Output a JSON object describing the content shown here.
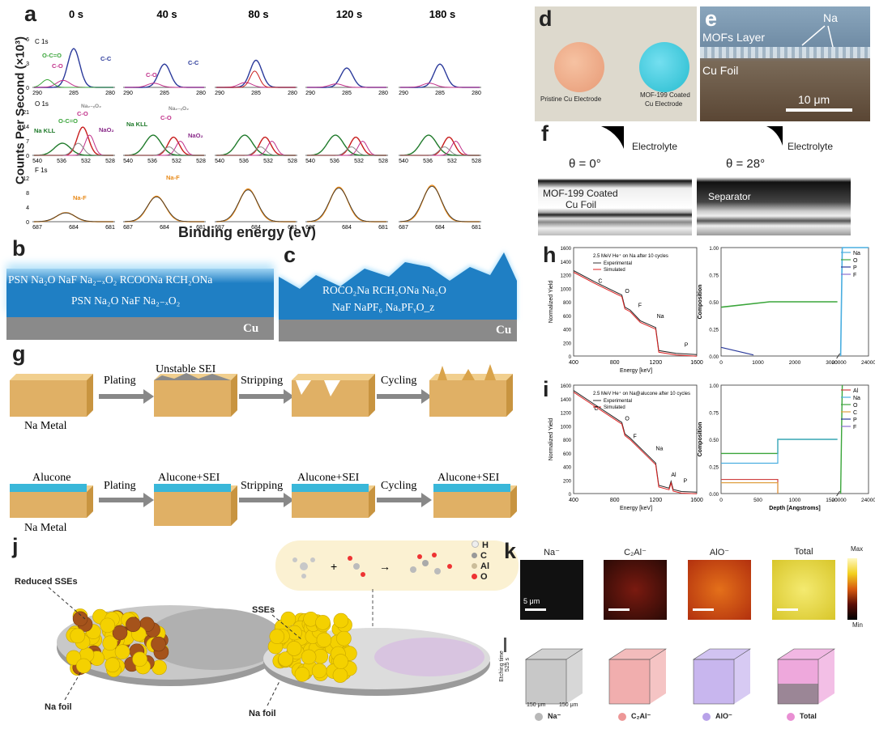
{
  "panel_letters": {
    "a": "a",
    "b": "b",
    "c": "c",
    "d": "d",
    "e": "e",
    "f": "f",
    "g": "g",
    "h": "h",
    "i": "i",
    "j": "j",
    "k": "k"
  },
  "panel_a": {
    "times": [
      "0 s",
      "40 s",
      "80 s",
      "120 s",
      "180 s"
    ],
    "ylabel": "Counts Per Second (×10³)",
    "xlabel": "Binding energy (eV)",
    "row_labels": [
      "C 1s",
      "O 1s",
      "F 1s"
    ],
    "c_ticks": [
      "290",
      "285",
      "280"
    ],
    "o_ticks": [
      "540",
      "536",
      "532",
      "528"
    ],
    "f_ticks": [
      "687",
      "684",
      "681"
    ],
    "c_yticks": [
      "6",
      "3",
      "0"
    ],
    "o_yticks": [
      "21",
      "14",
      "7",
      "0"
    ],
    "f_yticks": [
      "12",
      "8",
      "4",
      "0"
    ],
    "c_peaks": {
      "cc": "C-C",
      "co": "C-O",
      "oco": "O-C=O"
    },
    "o_peaks": {
      "nakll": "Na KLL",
      "oco": "O-C=O",
      "co": "C-O",
      "na2o2": "Na₂₋ₓO₂",
      "nao2": "NaO₂"
    },
    "f_peaks": {
      "naf": "Na-F"
    }
  },
  "panel_b": {
    "line1": "PSN  Na₂O  NaF  Na₂₋ₓO₂  RCOONa  RCH₂ONa",
    "line2": "PSN  Na₂O  NaF  Na₂₋ₓO₂",
    "substrate": "Cu"
  },
  "panel_c": {
    "line1": "ROCO₂Na  RCH₂ONa  Na₂O",
    "line2": "NaF  NaPF₆  NaₓPFᵧO_z",
    "substrate": "Cu"
  },
  "panel_d": {
    "left": "Pristine Cu Electrode",
    "right_1": "MOF-199 Coated",
    "right_2": "Cu Electrode"
  },
  "panel_e": {
    "na": "Na",
    "layer": "MOFs Layer",
    "foil": "Cu Foil",
    "scale": "10 μm"
  },
  "panel_f": {
    "electrolyte": "Electrolyte",
    "angle1": "θ = 0°",
    "angle2": "θ = 28°",
    "coated_1": "MOF-199 Coated",
    "coated_2": "Cu Foil",
    "separator": "Separator"
  },
  "panel_g": {
    "unstable": "Unstable SEI",
    "plating": "Plating",
    "stripping": "Stripping",
    "cycling": "Cycling",
    "na_metal": "Na Metal",
    "alucone": "Alucone",
    "alucone_sei": "Alucone+SEI"
  },
  "panel_h": {
    "note": "2.5 MeV He⁺ on Na after 10 cycles",
    "legend": [
      "Experimental",
      "Simulated"
    ],
    "ylabel": "Normalized Yield",
    "xlabel": "Energy [keV]",
    "peaks": [
      "C",
      "O",
      "F",
      "Na",
      "P"
    ],
    "xticks": [
      "400",
      "800",
      "1200",
      "1600"
    ],
    "yticks": [
      "0",
      "200",
      "400",
      "600",
      "800",
      "1000",
      "1200",
      "1400",
      "1600"
    ],
    "comp_ylabel": "Composition",
    "comp_legend": [
      "Na",
      "O",
      "P",
      "F"
    ],
    "comp_xticks": [
      "0",
      "1000",
      "2000",
      "3000",
      "20000",
      "24000"
    ],
    "comp_yticks": [
      "0.00",
      "0.25",
      "0.50",
      "0.75",
      "1.00"
    ]
  },
  "panel_i": {
    "note": "2.5 MeV He⁺ on Na@alucone after 10 cycles",
    "legend": [
      "Experimental",
      "Simulated"
    ],
    "ylabel": "Normalized Yield",
    "xlabel": "Energy [keV]",
    "peaks": [
      "C",
      "O",
      "F",
      "Na",
      "Al",
      "P"
    ],
    "xticks": [
      "400",
      "800",
      "1200",
      "1600"
    ],
    "yticks": [
      "0",
      "200",
      "400",
      "600",
      "800",
      "1000",
      "1200",
      "1400",
      "1600"
    ],
    "comp_ylabel": "Composition",
    "comp_xlabel": "Depth [Angstroms]",
    "comp_legend": [
      "Al",
      "Na",
      "O",
      "C",
      "P",
      "F"
    ],
    "comp_xticks": [
      "0",
      "500",
      "1000",
      "1500",
      "20000",
      "24000"
    ],
    "comp_yticks": [
      "0.00",
      "0.25",
      "0.50",
      "0.75",
      "1.00"
    ]
  },
  "panel_j": {
    "reduced": "Reduced SSEs",
    "sses": "SSEs",
    "nafoil": "Na foil",
    "legend": [
      "H",
      "C",
      "Al",
      "O"
    ]
  },
  "panel_k": {
    "maps": [
      "Na⁻",
      "C₂Al⁻",
      "AlO⁻",
      "Total"
    ],
    "scale": "5 μm",
    "cmax": "Max",
    "cmin": "Min",
    "etch_label": "Etching time",
    "etch_value": "525 s",
    "dim": "150 μm",
    "legend": [
      "Na⁻",
      "C₂Al⁻",
      "AlO⁻",
      "Total"
    ]
  },
  "colors": {
    "cc": "#2b3a9b",
    "co": "#c0308a",
    "oco": "#3aa53a",
    "nakll": "#1f7a2a",
    "o_red": "#c81e1e",
    "naf": "#e88a1a",
    "blue_layer": "#1f7fc4",
    "cu": "#7b7b7b",
    "na_metal": "#e0b065",
    "alucone": "#39b7d9",
    "ball": "#f4d100"
  }
}
